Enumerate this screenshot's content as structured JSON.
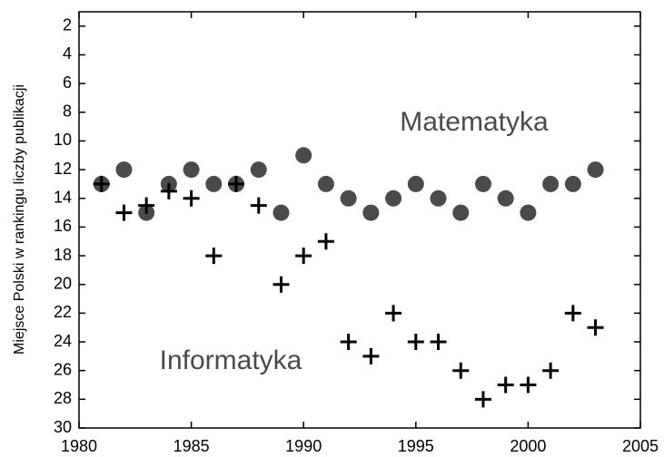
{
  "chart_data": {
    "type": "scatter",
    "ylabel": "Miejsce Polski w rankingu liczby publikacji",
    "annotations": [
      "Matematyka",
      "Informatyka"
    ],
    "xlim": [
      1980,
      2005
    ],
    "xticks": [
      1980,
      1985,
      1990,
      1995,
      2000,
      2005
    ],
    "ylim": [
      30,
      1
    ],
    "yticks": [
      2,
      4,
      6,
      8,
      10,
      12,
      14,
      16,
      18,
      20,
      22,
      24,
      26,
      28,
      30
    ],
    "series": [
      {
        "name": "Matematyka",
        "marker": "circle",
        "color": "#4a4a4a",
        "x": [
          1981,
          1982,
          1983,
          1984,
          1985,
          1986,
          1987,
          1988,
          1989,
          1990,
          1991,
          1992,
          1993,
          1994,
          1995,
          1996,
          1997,
          1998,
          1999,
          2000,
          2001,
          2002,
          2003
        ],
        "values": [
          13,
          12,
          15,
          13,
          12,
          13,
          13,
          12,
          15,
          11,
          13,
          14,
          15,
          14,
          13,
          14,
          15,
          13,
          14,
          15,
          13,
          13,
          12
        ]
      },
      {
        "name": "Informatyka",
        "marker": "plus",
        "color": "#000000",
        "x": [
          1981,
          1982,
          1983,
          1984,
          1985,
          1986,
          1987,
          1988,
          1989,
          1990,
          1991,
          1992,
          1993,
          1994,
          1995,
          1996,
          1997,
          1998,
          1999,
          2000,
          2001,
          2002,
          2003
        ],
        "values": [
          13,
          15,
          14.5,
          13.5,
          14,
          18,
          13,
          14.5,
          20,
          18,
          17,
          24,
          25,
          22,
          24,
          24,
          26,
          28,
          27,
          27,
          26,
          22,
          23
        ]
      }
    ]
  }
}
